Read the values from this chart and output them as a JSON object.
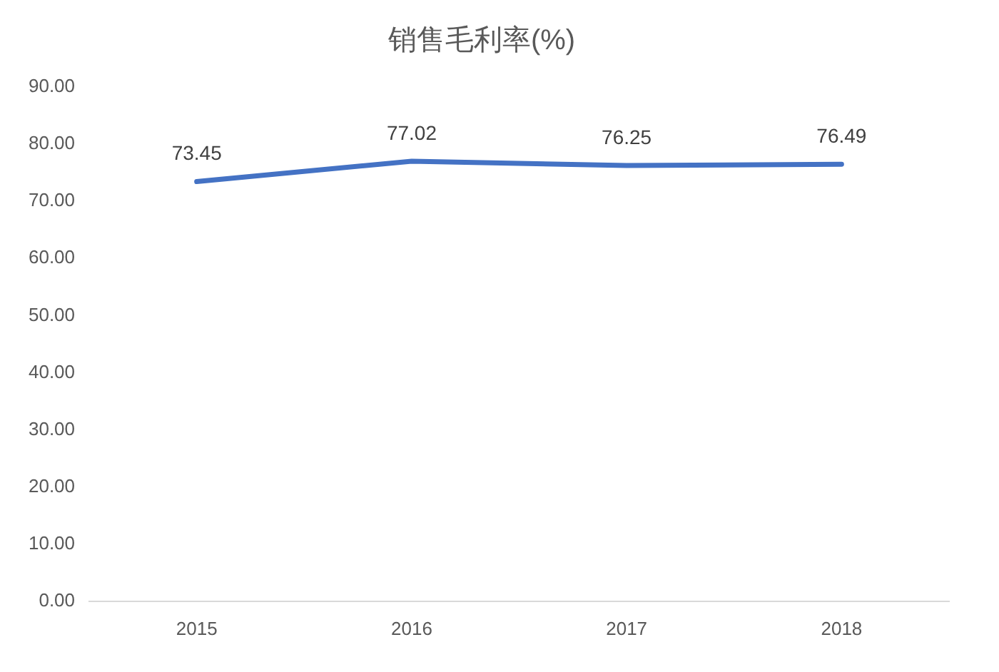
{
  "chart_data": {
    "type": "line",
    "title": "销售毛利率(%)",
    "categories": [
      "2015",
      "2016",
      "2017",
      "2018"
    ],
    "values": [
      73.45,
      77.02,
      76.25,
      76.49
    ],
    "color": "#4472c4",
    "ylim": [
      0,
      90
    ],
    "yticks": [
      {
        "value": 0,
        "label": "0.00"
      },
      {
        "value": 10,
        "label": "10.00"
      },
      {
        "value": 20,
        "label": "20.00"
      },
      {
        "value": 30,
        "label": "30.00"
      },
      {
        "value": 40,
        "label": "40.00"
      },
      {
        "value": 50,
        "label": "50.00"
      },
      {
        "value": 60,
        "label": "60.00"
      },
      {
        "value": 70,
        "label": "70.00"
      },
      {
        "value": 80,
        "label": "80.00"
      },
      {
        "value": 90,
        "label": "90.00"
      }
    ],
    "grid": false,
    "legend": false,
    "marker": "none",
    "line_style": "solid",
    "data_labels": true
  }
}
